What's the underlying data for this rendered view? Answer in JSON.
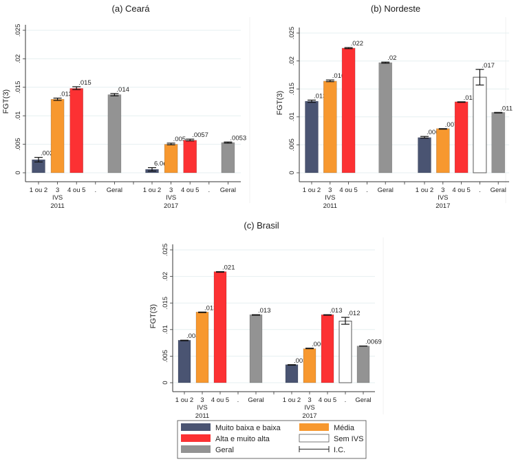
{
  "colors": {
    "muito_baixa_baixa": "#4a5472",
    "media": "#f7982f",
    "alta_muito_alta": "#fc3133",
    "sem_ivs": "#ffffff",
    "geral": "#939393",
    "gridline": "#e6eff0",
    "axis": "#333333"
  },
  "chart_data": [
    {
      "type": "bar",
      "title": "(a) Ceará",
      "ylabel": "FGT(3)",
      "xlabel": "",
      "ylim": [
        0,
        0.025
      ],
      "yticks": [
        0,
        0.005,
        0.01,
        0.015,
        0.02,
        0.025
      ],
      "ytick_labels": [
        "0",
        ".005",
        ".01",
        ".015",
        ".02",
        ".025"
      ],
      "grid": true,
      "groups": [
        {
          "year": "2011",
          "ivs_label": "IVS",
          "categories": [
            "1 ou 2",
            "3",
            "4 ou 5",
            ".",
            "Geral"
          ],
          "series_keys": [
            "muito_baixa_baixa",
            "media",
            "alta_muito_alta",
            "sem_ivs",
            "geral"
          ],
          "values": [
            0.0023,
            0.0129,
            0.0148,
            null,
            0.0137
          ],
          "ci_low": [
            0.0019,
            0.0127,
            0.0146,
            null,
            0.0135
          ],
          "ci_high": [
            0.0027,
            0.0131,
            0.0151,
            null,
            0.0139
          ],
          "labels": [
            ".0023",
            ".013",
            ".015",
            "",
            ".014"
          ]
        },
        {
          "year": "2017",
          "ivs_label": "IVS",
          "categories": [
            "1 ou 2",
            "3",
            "4 ou 5",
            ".",
            "Geral"
          ],
          "series_keys": [
            "muito_baixa_baixa",
            "media",
            "alta_muito_alta",
            "sem_ivs",
            "geral"
          ],
          "values": [
            0.0006,
            0.005,
            0.0057,
            null,
            0.0053
          ],
          "ci_low": [
            0.0003,
            0.0049,
            0.0056,
            null,
            0.0052
          ],
          "ci_high": [
            0.0009,
            0.0052,
            0.0059,
            null,
            0.0054
          ],
          "labels": [
            "6.0e-04",
            ".005",
            ".0057",
            "",
            ".0053"
          ]
        }
      ]
    },
    {
      "type": "bar",
      "title": "(b) Nordeste",
      "ylabel": "FGT(3)",
      "xlabel": "",
      "ylim": [
        0,
        0.025
      ],
      "yticks": [
        0,
        0.005,
        0.01,
        0.015,
        0.02,
        0.025
      ],
      "ytick_labels": [
        "0",
        ".005",
        ".01",
        ".015",
        ".02",
        ".025"
      ],
      "grid": true,
      "groups": [
        {
          "year": "2011",
          "ivs_label": "IVS",
          "categories": [
            "1 ou 2",
            "3",
            "4 ou 5",
            ".",
            "Geral"
          ],
          "series_keys": [
            "muito_baixa_baixa",
            "media",
            "alta_muito_alta",
            "sem_ivs",
            "geral"
          ],
          "values": [
            0.0128,
            0.0164,
            0.0223,
            null,
            0.0197
          ],
          "ci_low": [
            0.0126,
            0.0163,
            0.0222,
            null,
            0.0196
          ],
          "ci_high": [
            0.013,
            0.0166,
            0.0224,
            null,
            0.0198
          ],
          "labels": [
            ".013",
            ".016",
            ".022",
            "",
            ".02"
          ]
        },
        {
          "year": "2017",
          "ivs_label": "IVS",
          "categories": [
            "1 ou 2",
            "3",
            "4 ou 5",
            ".",
            "Geral"
          ],
          "series_keys": [
            "muito_baixa_baixa",
            "media",
            "alta_muito_alta",
            "sem_ivs",
            "geral"
          ],
          "values": [
            0.0063,
            0.0079,
            0.0127,
            0.0171,
            0.0108
          ],
          "ci_low": [
            0.0062,
            0.0078,
            0.0126,
            0.0157,
            0.0107
          ],
          "ci_high": [
            0.0065,
            0.0079,
            0.0127,
            0.0185,
            0.0108
          ],
          "labels": [
            ".0063",
            ".0079",
            ".013",
            ".017",
            ".011"
          ]
        }
      ]
    },
    {
      "type": "bar",
      "title": "(c) Brasil",
      "ylabel": "FGT(3)",
      "xlabel": "",
      "ylim": [
        0,
        0.025
      ],
      "yticks": [
        0,
        0.005,
        0.01,
        0.015,
        0.02,
        0.025
      ],
      "ytick_labels": [
        "0",
        ".005",
        ".01",
        ".015",
        ".02",
        ".025"
      ],
      "grid": true,
      "groups": [
        {
          "year": "2011",
          "ivs_label": "IVS",
          "categories": [
            "1 ou 2",
            "3",
            "4 ou 5",
            ".",
            "Geral"
          ],
          "series_keys": [
            "muito_baixa_baixa",
            "media",
            "alta_muito_alta",
            "sem_ivs",
            "geral"
          ],
          "values": [
            0.008,
            0.0133,
            0.0209,
            null,
            0.0128
          ],
          "ci_low": [
            0.0079,
            0.0132,
            0.0208,
            null,
            0.0127
          ],
          "ci_high": [
            0.008,
            0.0133,
            0.0209,
            null,
            0.0128
          ],
          "labels": [
            ".008",
            ".013",
            ".021",
            "",
            ".013"
          ]
        },
        {
          "year": "2017",
          "ivs_label": "IVS",
          "categories": [
            "1 ou 2",
            "3",
            "4 ou 5",
            ".",
            "Geral"
          ],
          "series_keys": [
            "muito_baixa_baixa",
            "media",
            "alta_muito_alta",
            "sem_ivs",
            "geral"
          ],
          "values": [
            0.0034,
            0.0064,
            0.0128,
            0.0116,
            0.0069
          ],
          "ci_low": [
            0.0033,
            0.0064,
            0.0127,
            0.011,
            0.0069
          ],
          "ci_high": [
            0.0034,
            0.0065,
            0.0128,
            0.0123,
            0.0069
          ],
          "labels": [
            ".0034",
            ".0064",
            ".013",
            ".012",
            ".0069"
          ]
        }
      ]
    }
  ],
  "legend": {
    "placement": "bottom-center",
    "items": [
      {
        "key": "muito_baixa_baixa",
        "label": "Muito baixa e baixa",
        "kind": "box"
      },
      {
        "key": "media",
        "label": "Média",
        "kind": "box"
      },
      {
        "key": "alta_muito_alta",
        "label": "Alta e muito alta",
        "kind": "box"
      },
      {
        "key": "sem_ivs",
        "label": "Sem IVS",
        "kind": "box"
      },
      {
        "key": "geral",
        "label": "Geral",
        "kind": "box"
      },
      {
        "key": "ci",
        "label": "I.C.",
        "kind": "errorbar"
      }
    ]
  }
}
